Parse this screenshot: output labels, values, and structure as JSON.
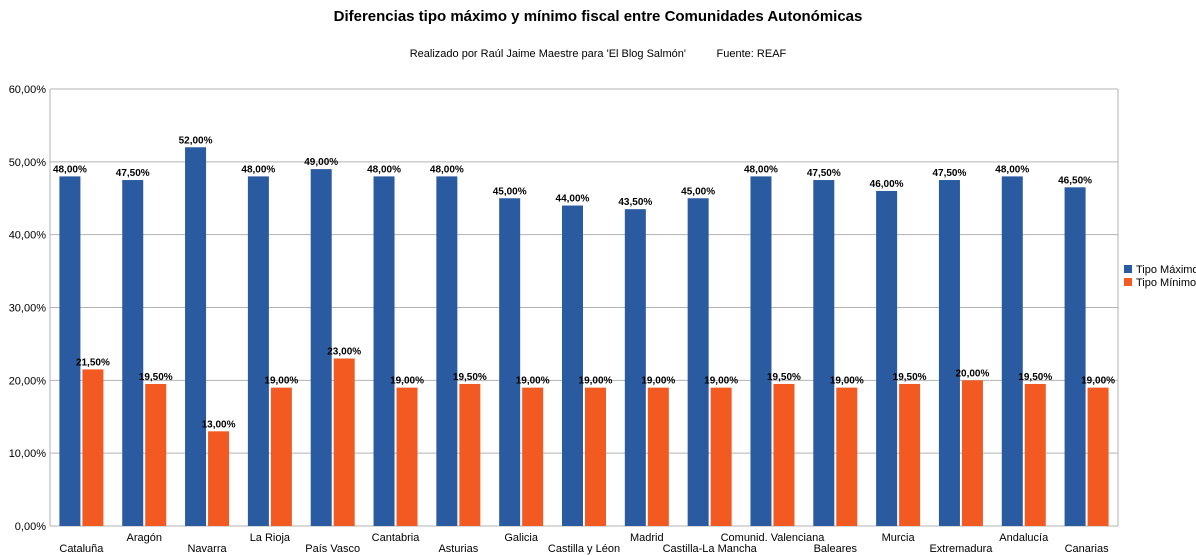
{
  "chart_data": {
    "type": "bar",
    "title": "Diferencias tipo máximo y mínimo fiscal entre Comunidades Autonómicas",
    "subtitle": "Realizado por Raúl Jaime Maestre para 'El Blog Salmón'          Fuente: REAF",
    "xlabel": "",
    "ylabel": "",
    "ylim": [
      0,
      60
    ],
    "yticks": [
      0,
      10,
      20,
      30,
      40,
      50,
      60
    ],
    "ytick_labels": [
      "0,00%",
      "10,00%",
      "20,00%",
      "30,00%",
      "40,00%",
      "50,00%",
      "60,00%"
    ],
    "grid": true,
    "legend_position": "right",
    "categories": [
      "Cataluña",
      "Aragón",
      "Navarra",
      "La Rioja",
      "País Vasco",
      "Cantabria",
      "Asturias",
      "Galicia",
      "Castilla y Léon",
      "Madrid",
      "Castilla-La Mancha",
      "Comunid. Valenciana",
      "Baleares",
      "Murcia",
      "Extremadura",
      "Andalucía",
      "Canarias"
    ],
    "series": [
      {
        "name": "Tipo Máximo",
        "color": "#2a5aa0",
        "values": [
          48.0,
          47.5,
          52.0,
          48.0,
          49.0,
          48.0,
          48.0,
          45.0,
          44.0,
          43.5,
          45.0,
          48.0,
          47.5,
          46.0,
          47.5,
          48.0,
          46.5
        ],
        "labels": [
          "48,00%",
          "47,50%",
          "52,00%",
          "48,00%",
          "49,00%",
          "48,00%",
          "48,00%",
          "45,00%",
          "44,00%",
          "43,50%",
          "45,00%",
          "48,00%",
          "47,50%",
          "46,00%",
          "47,50%",
          "48,00%",
          "46,50%"
        ]
      },
      {
        "name": "Tipo Mínimo",
        "color": "#f25a22",
        "values": [
          21.5,
          19.5,
          13.0,
          19.0,
          23.0,
          19.0,
          19.5,
          19.0,
          19.0,
          19.0,
          19.0,
          19.5,
          19.0,
          19.5,
          20.0,
          19.5,
          19.0
        ],
        "labels": [
          "21,50%",
          "19,50%",
          "13,00%",
          "19,00%",
          "23,00%",
          "19,00%",
          "19,50%",
          "19,00%",
          "19,00%",
          "19,00%",
          "19,00%",
          "19,50%",
          "19,00%",
          "19,50%",
          "20,00%",
          "19,50%",
          "19,00%"
        ]
      }
    ]
  }
}
